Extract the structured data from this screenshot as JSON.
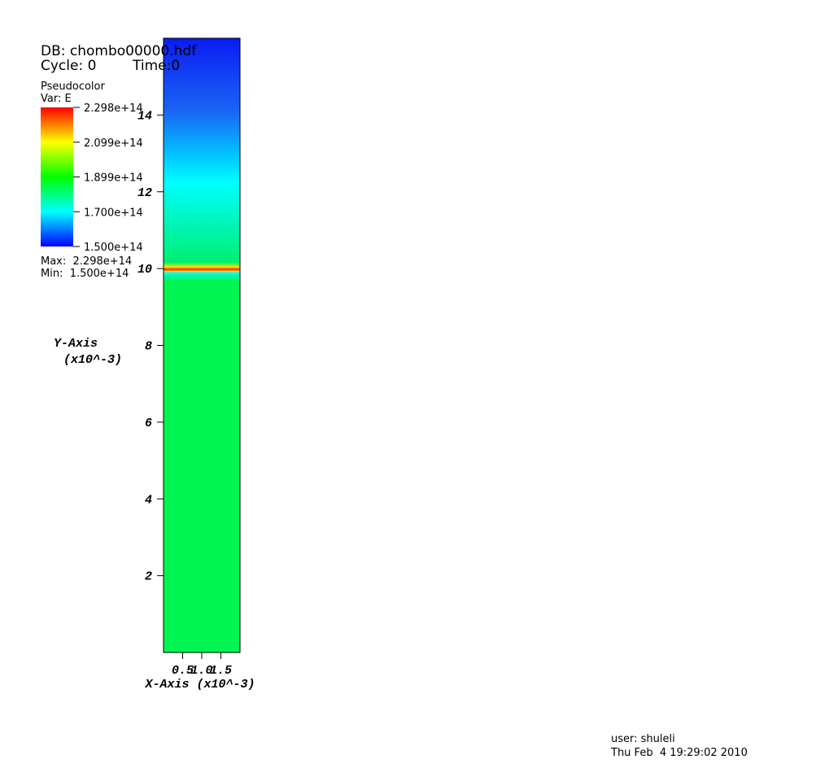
{
  "chart_data": {
    "type": "pseudocolor",
    "db": "DB: chombo00000.hdf",
    "cycle": "Cycle: 0",
    "time": "Time:0",
    "plot_name": "Pseudocolor",
    "variable": "Var: E",
    "x_label": "X-Axis (x10^-3)",
    "y_label": "Y-Axis",
    "y_label_scale": "(x10^-3)",
    "xlim": [
      0,
      2
    ],
    "xticks": [
      {
        "value": 0.5,
        "label": "0.5"
      },
      {
        "value": 1.0,
        "label": "1.0"
      },
      {
        "value": 1.5,
        "label": "1.5"
      }
    ],
    "ylim": [
      0,
      16
    ],
    "yticks": [
      2,
      4,
      6,
      8,
      10,
      12,
      14
    ],
    "colorbar_lim": [
      150000000000000.0,
      229800000000000.0
    ],
    "colorbar_ticks": [
      {
        "value": 229800000000000.0,
        "label": "2.298e+14"
      },
      {
        "value": 209850000000000.0,
        "label": "2.099e+14"
      },
      {
        "value": 189900000000000.0,
        "label": "1.899e+14"
      },
      {
        "value": 169950000000000.0,
        "label": "1.700e+14"
      },
      {
        "value": 150000000000000.0,
        "label": "1.500e+14"
      }
    ],
    "max_text": "Max:  2.298e+14",
    "min_text": "Min:  1.500e+14",
    "user": "user: shuleli",
    "date": "Thu Feb  4 19:29:02 2010"
  }
}
